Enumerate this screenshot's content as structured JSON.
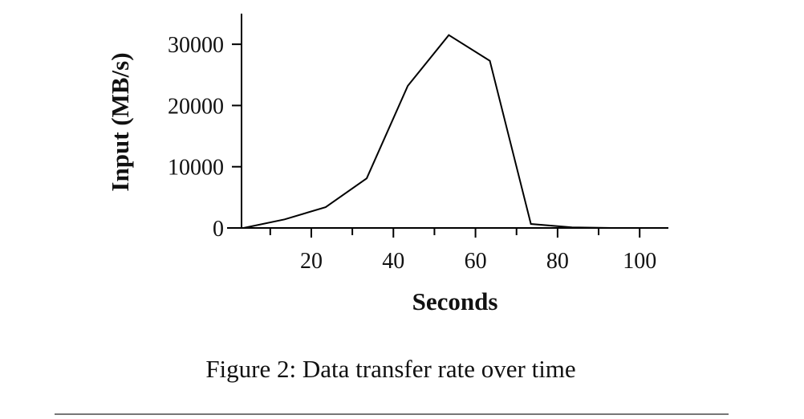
{
  "chart_data": {
    "type": "line",
    "x_label": "Seconds",
    "y_label": "Input (MB/s)",
    "caption": "Figure 2: Data transfer rate over time",
    "x": [
      3.5,
      13.5,
      23.5,
      33.5,
      43.5,
      53.5,
      63.5,
      73.5,
      83.5,
      93.5,
      103.5
    ],
    "series": [
      {
        "name": "Input",
        "color": "#000000",
        "values": [
          0,
          1400,
          3400,
          8100,
          23200,
          31500,
          27300,
          650,
          100,
          0,
          0
        ]
      }
    ],
    "xlim": [
      3,
      107
    ],
    "xticks": [
      20,
      40,
      60,
      80,
      100
    ],
    "xminorticks": [
      10,
      30,
      50,
      70,
      90
    ],
    "ylim": [
      0,
      35000
    ],
    "yticks": [
      0,
      10000,
      20000,
      30000
    ]
  }
}
